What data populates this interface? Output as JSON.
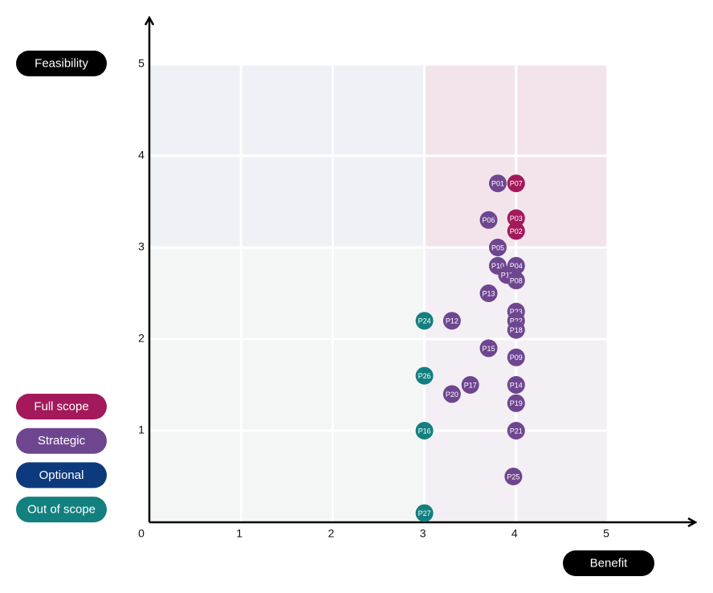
{
  "chart_data": {
    "type": "scatter",
    "x_label": "Benefit",
    "y_label": "Feasibility",
    "xlim": [
      0,
      5
    ],
    "ylim": [
      0,
      5
    ],
    "xticks": [
      0,
      1,
      2,
      3,
      4,
      5
    ],
    "yticks": [
      0,
      1,
      2,
      3,
      4,
      5
    ],
    "grid": true,
    "series": [
      {
        "name": "Full scope",
        "color": "#a3195b",
        "labels": [
          "P07",
          "P03",
          "P02"
        ],
        "x": [
          4.0,
          4.0,
          4.0
        ],
        "values": [
          3.7,
          3.32,
          3.18
        ]
      },
      {
        "name": "Strategic",
        "color": "#6e4690",
        "labels": [
          "P01",
          "P06",
          "P05",
          "P10",
          "P04",
          "P11",
          "P08",
          "P13",
          "P23",
          "P22",
          "P18",
          "P12",
          "P15",
          "P09",
          "P17",
          "P14",
          "P20",
          "P19",
          "P21",
          "P25"
        ],
        "x": [
          3.8,
          3.7,
          3.8,
          3.8,
          4.0,
          3.9,
          4.0,
          3.7,
          4.0,
          4.0,
          4.0,
          3.3,
          3.7,
          4.0,
          3.5,
          4.0,
          3.3,
          4.0,
          4.0,
          3.97
        ],
        "values": [
          3.7,
          3.3,
          3.0,
          2.8,
          2.8,
          2.7,
          2.64,
          2.5,
          2.3,
          2.2,
          2.1,
          2.2,
          1.9,
          1.8,
          1.5,
          1.5,
          1.4,
          1.3,
          1.0,
          0.5
        ]
      },
      {
        "name": "Optional",
        "color": "#0c3a7d",
        "labels": [],
        "x": [],
        "values": []
      },
      {
        "name": "Out of scope",
        "color": "#12807f",
        "labels": [
          "P24",
          "P26",
          "P16",
          "P27"
        ],
        "x": [
          3.0,
          3.0,
          3.0,
          3.0
        ],
        "values": [
          2.2,
          1.6,
          1.0,
          0.1
        ]
      }
    ]
  }
}
